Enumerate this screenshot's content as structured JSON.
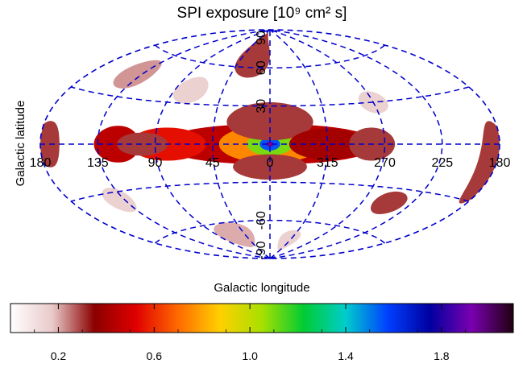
{
  "chart_data": {
    "type": "heatmap",
    "title": "SPI exposure [10⁹ cm² s]",
    "xlabel": "Galactic longitude",
    "ylabel": "Galactic latitude",
    "projection": "aitoff",
    "longitude_ticks": [
      {
        "lon": 180,
        "label": "180"
      },
      {
        "lon": 135,
        "label": "135"
      },
      {
        "lon": 90,
        "label": "90"
      },
      {
        "lon": 45,
        "label": "45"
      },
      {
        "lon": 0,
        "label": "0"
      },
      {
        "lon": -45,
        "label": "315"
      },
      {
        "lon": -90,
        "label": "270"
      },
      {
        "lon": -135,
        "label": "225"
      },
      {
        "lon": -180,
        "label": "180"
      }
    ],
    "latitude_ticks": [
      {
        "lat": 90,
        "label": "90"
      },
      {
        "lat": 60,
        "label": "60"
      },
      {
        "lat": 30,
        "label": "30"
      },
      {
        "lat": -60,
        "label": "-60"
      },
      {
        "lat": -90,
        "label": "-90"
      }
    ],
    "grid": true,
    "grid_color": "#0000cc",
    "colorbar": {
      "range": [
        0.0,
        2.1
      ],
      "ticks": [
        0.2,
        0.6,
        1.0,
        1.4,
        1.8
      ],
      "tick_labels": [
        "0.2",
        "0.6",
        "1.0",
        "1.4",
        "1.8"
      ],
      "colors": [
        "#ffffff",
        "#e9c9c9",
        "#8b0000",
        "#e00000",
        "#ff6a00",
        "#ffd000",
        "#a8e000",
        "#00cc33",
        "#00cccc",
        "#0040ff",
        "#0000a0",
        "#7a00b0",
        "#200010"
      ]
    },
    "exposure_regions": [
      {
        "lon": 0,
        "lat": 0,
        "rlon": 85,
        "rlat": 16,
        "value": 0.45
      },
      {
        "lon": 0,
        "lat": 0,
        "rlon": 40,
        "rlat": 15,
        "value": 0.75
      },
      {
        "lon": 0,
        "lat": 0,
        "rlon": 18,
        "rlat": 9,
        "value": 1.1
      },
      {
        "lon": 0,
        "lat": 0,
        "rlon": 8,
        "rlat": 5,
        "value": 1.55
      },
      {
        "lon": 0,
        "lat": 0,
        "rlon": 3,
        "rlat": 2,
        "value": 1.95
      },
      {
        "lon": 0,
        "lat": 18,
        "rlon": 35,
        "rlat": 15,
        "value": 0.3
      },
      {
        "lon": 0,
        "lat": -18,
        "rlon": 30,
        "rlat": 10,
        "value": 0.3
      },
      {
        "lon": 80,
        "lat": 0,
        "rlon": 30,
        "rlat": 12,
        "value": 0.55
      },
      {
        "lon": 120,
        "lat": 0,
        "rlon": 18,
        "rlat": 12,
        "value": 0.45
      },
      {
        "lon": 100,
        "lat": 0,
        "rlon": 20,
        "rlat": 8,
        "value": 0.3
      },
      {
        "lon": -45,
        "lat": 0,
        "rlon": 30,
        "rlat": 12,
        "value": 0.4
      },
      {
        "lon": -80,
        "lat": 0,
        "rlon": 18,
        "rlat": 12,
        "value": 0.3
      },
      {
        "lon": 175,
        "lat": 0,
        "rlon": 10,
        "rlat": 12,
        "value": 0.3
      },
      {
        "lon": -175,
        "lat": -10,
        "rlon": 10,
        "rlat": 22,
        "value": 0.3
      },
      {
        "lon": 25,
        "lat": 70,
        "rlon": 25,
        "rlat": 18,
        "value": 0.3
      },
      {
        "lon": 140,
        "lat": 45,
        "rlon": 16,
        "rlat": 10,
        "value": 0.22
      },
      {
        "lon": 75,
        "lat": 40,
        "rlon": 15,
        "rlat": 10,
        "value": 0.15
      },
      {
        "lon": -115,
        "lat": -40,
        "rlon": 15,
        "rlat": 8,
        "value": 0.3
      },
      {
        "lon": -90,
        "lat": 30,
        "rlon": 12,
        "rlat": 8,
        "value": 0.15
      },
      {
        "lon": 140,
        "lat": -35,
        "rlon": 12,
        "rlat": 8,
        "value": 0.15
      },
      {
        "lon": 60,
        "lat": -70,
        "rlon": 30,
        "rlat": 10,
        "value": 0.2
      },
      {
        "lon": -40,
        "lat": -75,
        "rlon": 20,
        "rlat": 8,
        "value": 0.15
      }
    ]
  }
}
